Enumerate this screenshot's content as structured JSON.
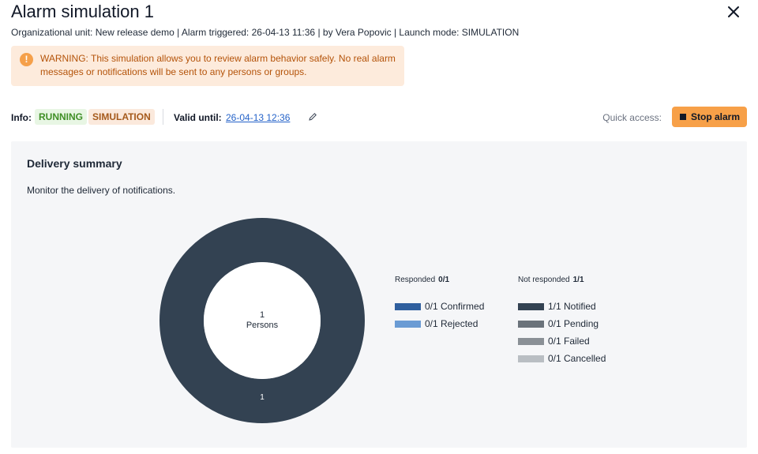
{
  "header": {
    "title": "Alarm simulation 1",
    "meta": "Organizational unit: New release demo | Alarm triggered: 26-04-13 11:36 | by Vera Popovic | Launch mode: SIMULATION"
  },
  "warning": {
    "icon": "!",
    "text_line1": "WARNING: This simulation allows you to review alarm behavior safely. No real alarm",
    "text_line2": "messages or notifications will be sent to any persons or groups."
  },
  "info": {
    "label": "Info:",
    "status_running": "RUNNING",
    "status_simulation": "SIMULATION",
    "valid_label": "Valid until:",
    "valid_value": "26-04-13 12:36",
    "quick_access_label": "Quick access:",
    "stop_button_label": "Stop alarm"
  },
  "delivery": {
    "title": "Delivery summary",
    "subtitle": "Monitor the delivery of notifications.",
    "center_count": "1",
    "center_label": "Persons",
    "segment_label": "1",
    "responded": {
      "label": "Responded",
      "value": "0/1",
      "items": [
        {
          "text": "0/1 Confirmed",
          "color": "#2f5f9e"
        },
        {
          "text": "0/1 Rejected",
          "color": "#6a9bd4"
        }
      ]
    },
    "not_responded": {
      "label": "Not responded",
      "value": "1/1",
      "items": [
        {
          "text": "1/1 Notified",
          "color": "#334252"
        },
        {
          "text": "0/1 Pending",
          "color": "#6b737b"
        },
        {
          "text": "0/1 Failed",
          "color": "#8a9096"
        },
        {
          "text": "0/1 Cancelled",
          "color": "#b9bec3"
        }
      ]
    }
  },
  "colors": {
    "accent": "#f7a048",
    "donut": "#334252"
  }
}
